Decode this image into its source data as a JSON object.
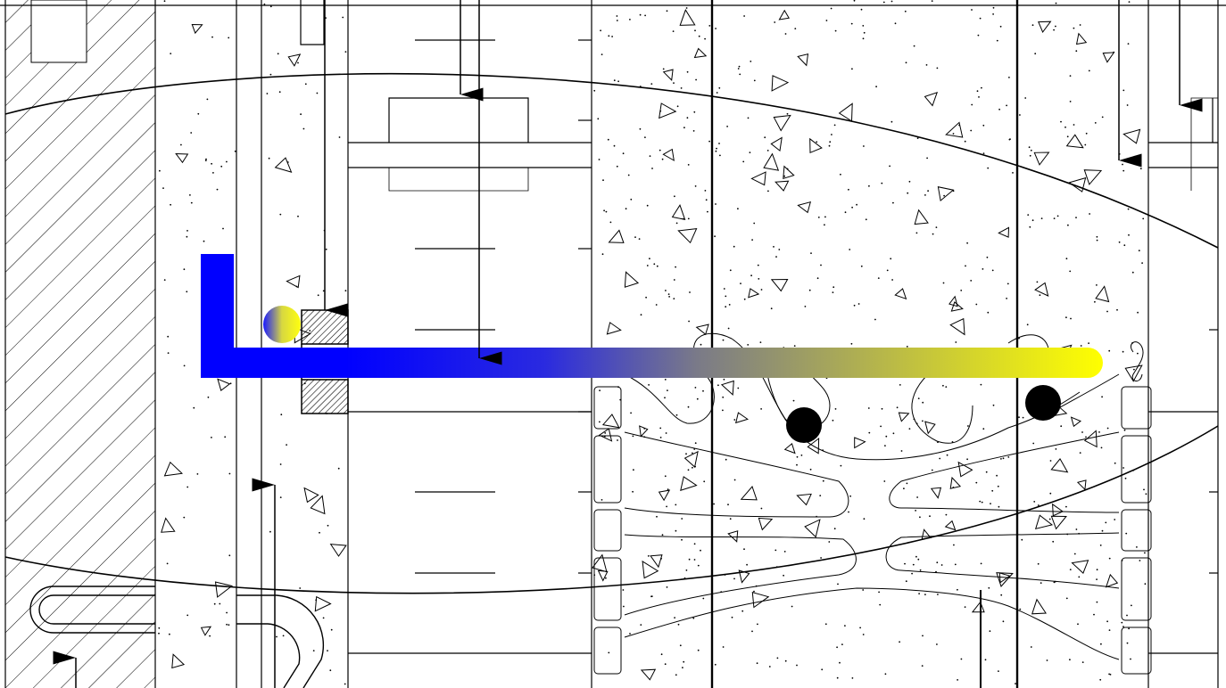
{
  "drawing": {
    "kind": "structural-section-detail",
    "background_color": "#ffffff",
    "line_color": "#000000",
    "colors": {
      "bar_start": "#0000ff",
      "bar_end": "#ffff00",
      "rebar_dot": "#000000",
      "hatch": "#000000"
    },
    "elements": [
      "left-hatched-wall",
      "concrete-column-strip",
      "upper-sweep-curve",
      "lower-sweep-curve",
      "hatched-anchor-blocks",
      "blue-to-yellow-bar",
      "hook-loop"
    ],
    "arrow_icons": [
      "arrow-down-icon",
      "arrow-up-icon"
    ]
  }
}
